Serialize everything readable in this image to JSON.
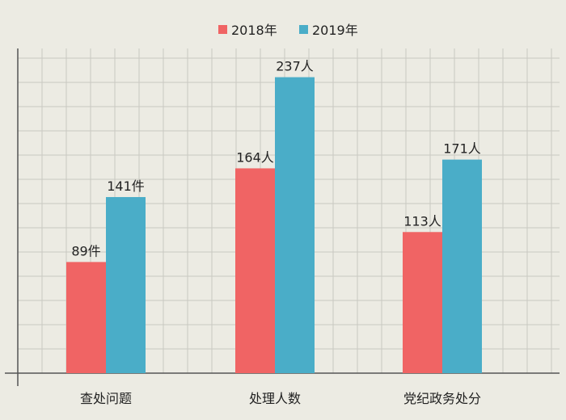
{
  "chart_data": {
    "type": "bar",
    "categories": [
      "查处问题",
      "处理人数",
      "党纪政务处分"
    ],
    "series": [
      {
        "name": "2018年",
        "color": "#f06464",
        "values": [
          89,
          164,
          113
        ],
        "labels": [
          "89件",
          "164人",
          "113人"
        ]
      },
      {
        "name": "2019年",
        "color": "#4aadc8",
        "values": [
          141,
          237,
          171
        ],
        "labels": [
          "141件",
          "237人",
          "171人"
        ]
      }
    ],
    "title": "",
    "xlabel": "",
    "ylabel": "",
    "ylim": [
      0,
      260
    ],
    "grid": true,
    "legend_position": "top-center"
  }
}
